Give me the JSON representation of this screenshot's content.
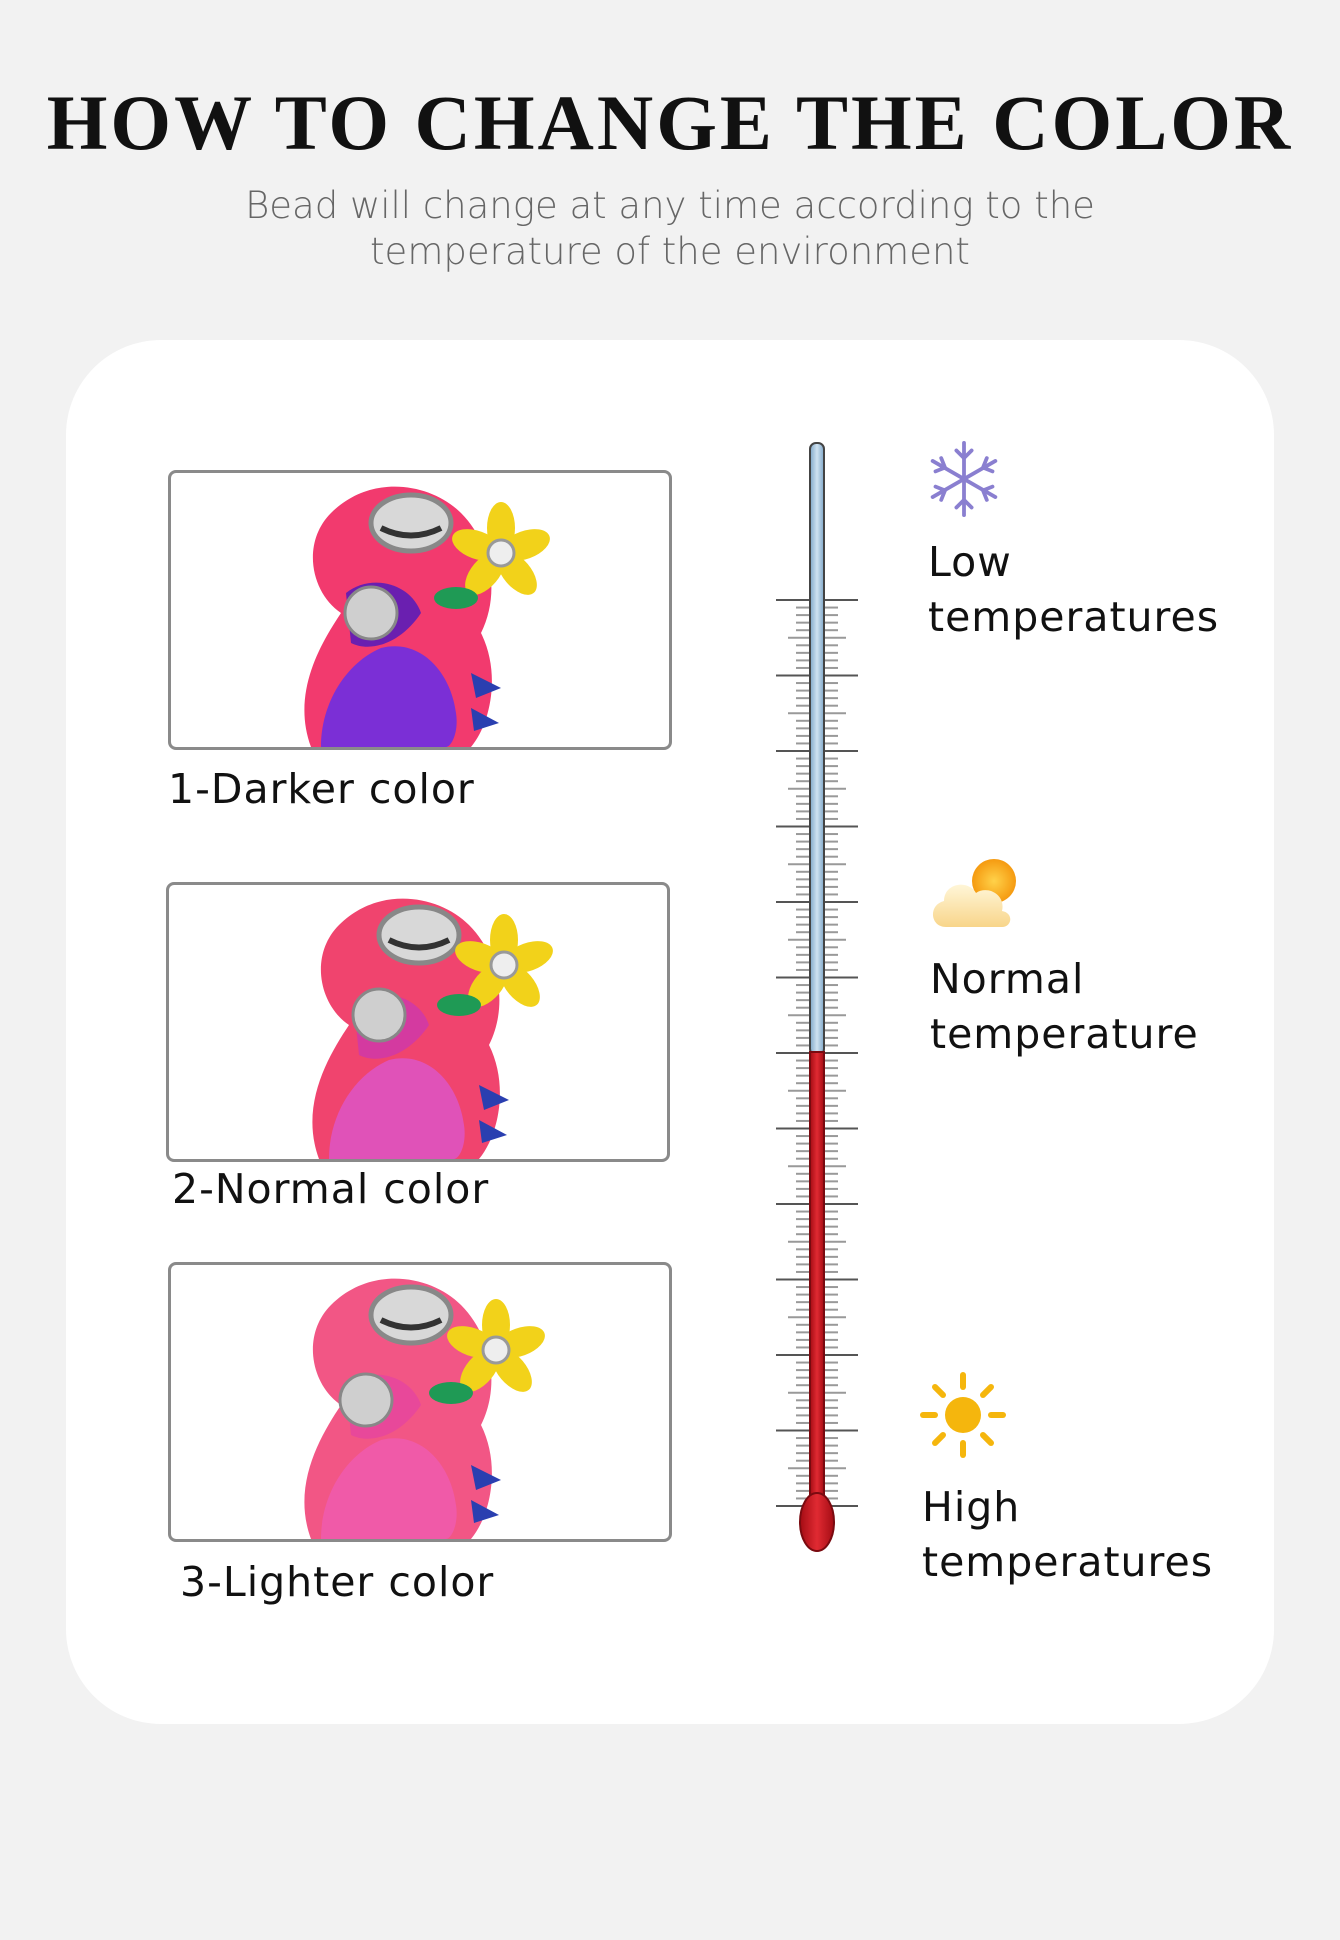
{
  "title": "HOW TO CHANGE THE COLOR",
  "subtitle_line1": "Bead will change at any time according to the",
  "subtitle_line2": "temperature of the environment",
  "beads": [
    {
      "caption": "1-Darker color",
      "body_color": "#7b2fd6",
      "head_color": "#f23a6e"
    },
    {
      "caption": "2-Normal color",
      "body_color": "#e052b8",
      "head_color": "#f0446e"
    },
    {
      "caption": "3-Lighter color",
      "body_color": "#f05aa8",
      "head_color": "#f25685"
    }
  ],
  "temperatures": [
    {
      "line1": "Low",
      "line2": "temperatures",
      "icon": "snowflake-icon"
    },
    {
      "line1": "Normal",
      "line2": "temperature",
      "icon": "sun-cloud-icon"
    },
    {
      "line1": "High",
      "line2": "temperatures",
      "icon": "sun-icon"
    }
  ],
  "colors": {
    "thermometer_cold": "#a9c9e3",
    "thermometer_hot": "#c8141e",
    "snowflake": "#8a7fd0",
    "sun": "#f5b60d"
  }
}
